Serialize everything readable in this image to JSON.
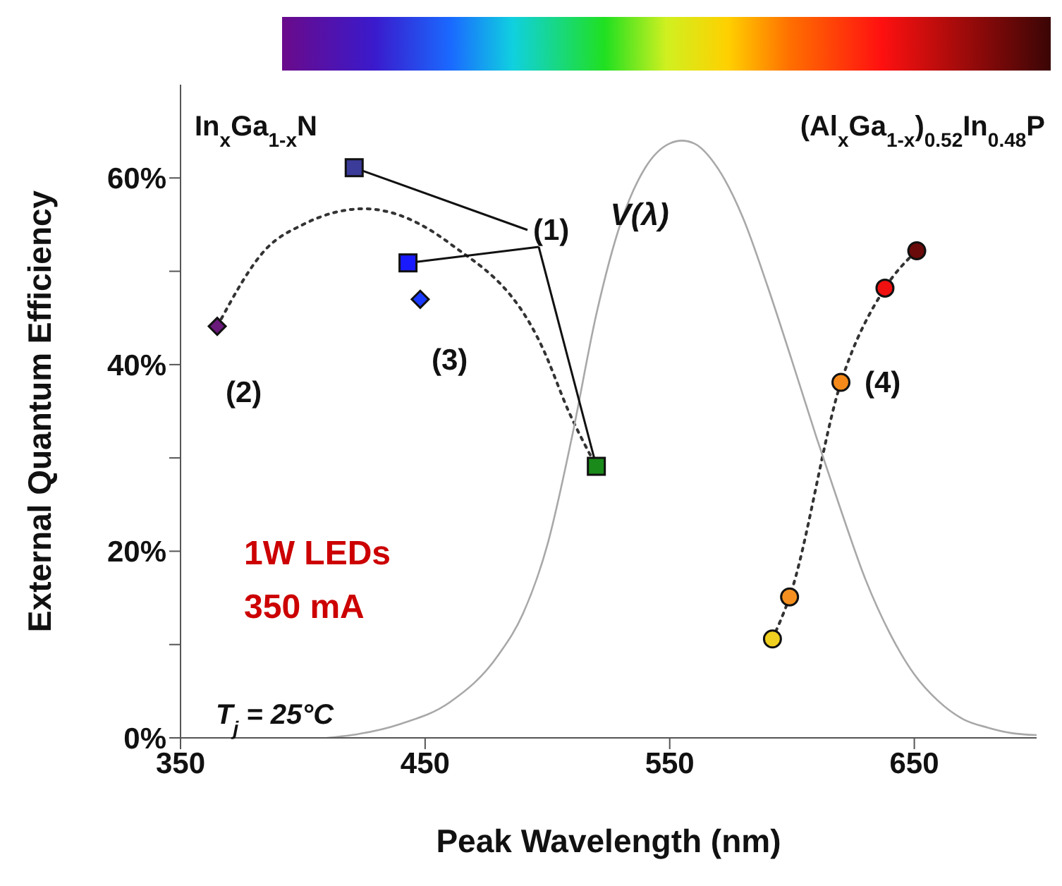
{
  "chart_data": {
    "type": "scatter",
    "xlabel": "Peak Wavelength (nm)",
    "ylabel": "External Quantum Efficiency",
    "xlim": [
      350,
      700
    ],
    "xticks": [
      350,
      450,
      550,
      650
    ],
    "ylim": [
      0,
      70
    ],
    "yticks": [
      {
        "value": 0,
        "label": "0%"
      },
      {
        "value": 10,
        "label": null
      },
      {
        "value": 20,
        "label": "20%"
      },
      {
        "value": 30,
        "label": null
      },
      {
        "value": 40,
        "label": "40%"
      },
      {
        "value": 50,
        "label": null
      },
      {
        "value": 60,
        "label": "60%"
      }
    ],
    "series": [
      {
        "marker": "square",
        "colors": [
          "#3b3b9a",
          "#1a1aff",
          "#1a8a1a"
        ],
        "x": [
          421,
          443,
          520
        ],
        "values": [
          61.1,
          50.9,
          29.1
        ]
      },
      {
        "marker": "diamond",
        "colors": [
          "#6a1a7a",
          "#1a3aff"
        ],
        "x": [
          365,
          448
        ],
        "values": [
          44.1,
          47.0
        ]
      },
      {
        "type": "line",
        "line_style": "dotted",
        "color": "#333333",
        "x": [
          365,
          385,
          400,
          425,
          460,
          498,
          509,
          520
        ],
        "values": [
          44.1,
          52.4,
          55,
          56.7,
          53,
          41.8,
          34.8,
          29.1
        ]
      },
      {
        "marker": "circle",
        "colors": [
          "#f0d020",
          "#f59020",
          "#f58a1a",
          "#f01010",
          "#6a0a0a"
        ],
        "x": [
          592,
          599,
          620,
          638,
          651
        ],
        "values": [
          10.6,
          15.1,
          38.1,
          48.2,
          52.2
        ]
      },
      {
        "type": "line",
        "line_style": "dotted",
        "color": "#333333",
        "x": [
          592,
          599,
          620,
          638,
          651
        ],
        "values": [
          10.6,
          15.1,
          38.1,
          48.2,
          52.2
        ]
      },
      {
        "type": "line",
        "name": "V(λ)",
        "color": "#a8a8a8",
        "line_style": "solid",
        "x": [
          410,
          420,
          440,
          460,
          480,
          490,
          500,
          510,
          520,
          530,
          540,
          550,
          555,
          560,
          570,
          580,
          590,
          600,
          610,
          620,
          630,
          640,
          650,
          660,
          670,
          680,
          690,
          700
        ],
        "values": [
          0,
          0.3,
          1.5,
          3.8,
          8.9,
          13.3,
          20.7,
          32.2,
          45.4,
          55.2,
          61.1,
          63.7,
          64,
          63.7,
          60.9,
          55.7,
          48.4,
          40.4,
          32.2,
          24.4,
          17,
          11.2,
          6.8,
          3.9,
          2,
          1.1,
          0.5,
          0.3
        ]
      }
    ],
    "annotations": [
      {
        "text": "(1)",
        "x": 421,
        "y": 61.1
      },
      "(2)",
      "(3)",
      "(4)",
      "In$_{x}$Ga$_{1-x}$N",
      "(Al$_{x}$Ga$_{1-x}$)$_{0.52}$In$_{0.48}$P",
      "1W LEDs",
      "350 mA",
      "T$_{j}$ = 25°C"
    ]
  }
}
